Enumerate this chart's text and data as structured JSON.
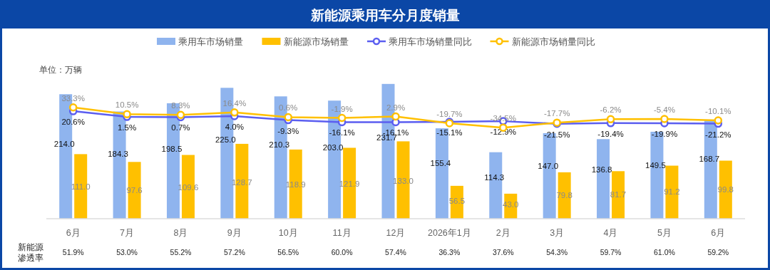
{
  "chart_data": {
    "type": "bar",
    "title": "新能源乘用车分月度销量",
    "ylabel": "单位：万辆",
    "categories": [
      "6月",
      "7月",
      "8月",
      "9月",
      "10月",
      "11月",
      "12月",
      "2026年1月",
      "2月",
      "3月",
      "4月",
      "5月",
      "6月"
    ],
    "series": [
      {
        "name": "乘用车市场销量",
        "color": "#8fb4ee",
        "values": [
          214.0,
          184.3,
          198.5,
          225.0,
          210.3,
          203.0,
          231.7,
          155.4,
          114.3,
          147.0,
          136.8,
          149.5,
          168.7
        ],
        "value_labels": [
          "214.0",
          "184.3",
          "198.5",
          "225.0",
          "210.3",
          "203.0",
          "231.7",
          "155.4",
          "114.3",
          "147.0",
          "136.8",
          "149.5",
          "168.7"
        ]
      },
      {
        "name": "新能源市场销量",
        "color": "#ffc000",
        "values": [
          111.0,
          97.6,
          109.6,
          128.7,
          118.9,
          121.9,
          133.0,
          56.5,
          43.0,
          79.8,
          81.7,
          91.2,
          99.8
        ],
        "value_labels": [
          "111.0",
          "97.6",
          "109.6",
          "128.7",
          "118.9",
          "121.9",
          "133.0",
          "56.5",
          "43.0",
          "79.8",
          "81.7",
          "91.2",
          "99.8"
        ]
      },
      {
        "name": "乘用车市场销量同比",
        "type": "line",
        "axis": "y2",
        "color": "#5b5ef0",
        "values": [
          20.6,
          1.5,
          0.7,
          4.0,
          -9.3,
          -16.1,
          -16.1,
          -15.1,
          -12.9,
          -21.5,
          -19.4,
          -19.9,
          -21.2
        ],
        "value_labels": [
          "20.6%",
          "1.5%",
          "0.7%",
          "4.0%",
          "-9.3%",
          "-16.1%",
          "-16.1%",
          "-15.1%",
          "-12.9%",
          "-21.5%",
          "-19.4%",
          "-19.9%",
          "-21.2%"
        ]
      },
      {
        "name": "新能源市场销量同比",
        "type": "line",
        "axis": "y2",
        "color": "#ffc000",
        "values": [
          33.3,
          10.5,
          8.3,
          16.4,
          0.6,
          -1.9,
          2.9,
          -19.7,
          -34.5,
          -17.7,
          -6.2,
          -5.4,
          -10.1
        ],
        "value_labels": [
          "33.3%",
          "10.5%",
          "8.3%",
          "16.4%",
          "0.6%",
          "-1.9%",
          "2.9%",
          "-19.7%",
          "-34.5%",
          "-17.7%",
          "-6.2%",
          "-5.4%",
          "-10.1%"
        ]
      }
    ],
    "tick_labels": "x",
    "marker": "circle",
    "legend": "top",
    "grid": false,
    "annotations": [
      "新能源渗透率",
      "51.9%",
      "53.0%",
      "55.2%",
      "57.2%",
      "56.5%",
      "60.0%",
      "57.4%",
      "36.3%",
      "37.6%",
      "54.3%",
      "59.7%",
      "61.0%",
      "59.2%"
    ]
  }
}
